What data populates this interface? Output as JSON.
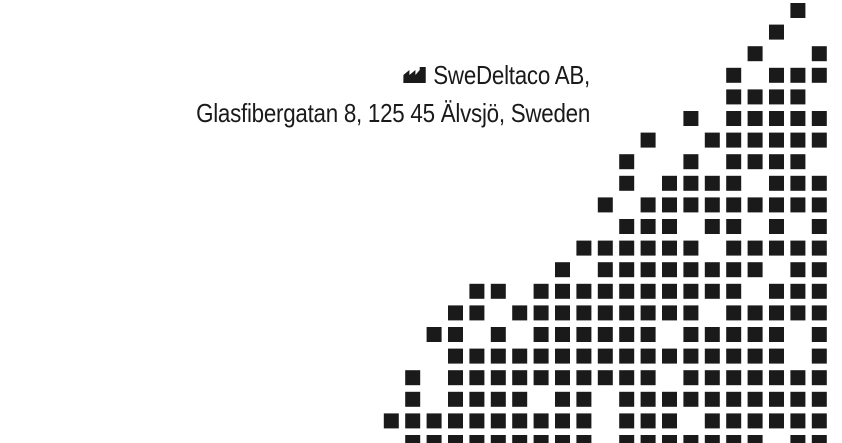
{
  "manufacturer": {
    "icon": "factory-icon",
    "name": "SweDeltaco AB,",
    "address": "Glasfibergatan 8, 125 45 Älvsjö, Sweden"
  },
  "decoration": {
    "icon": "pixel-staircase-pattern",
    "color": "#1a1a1a"
  }
}
